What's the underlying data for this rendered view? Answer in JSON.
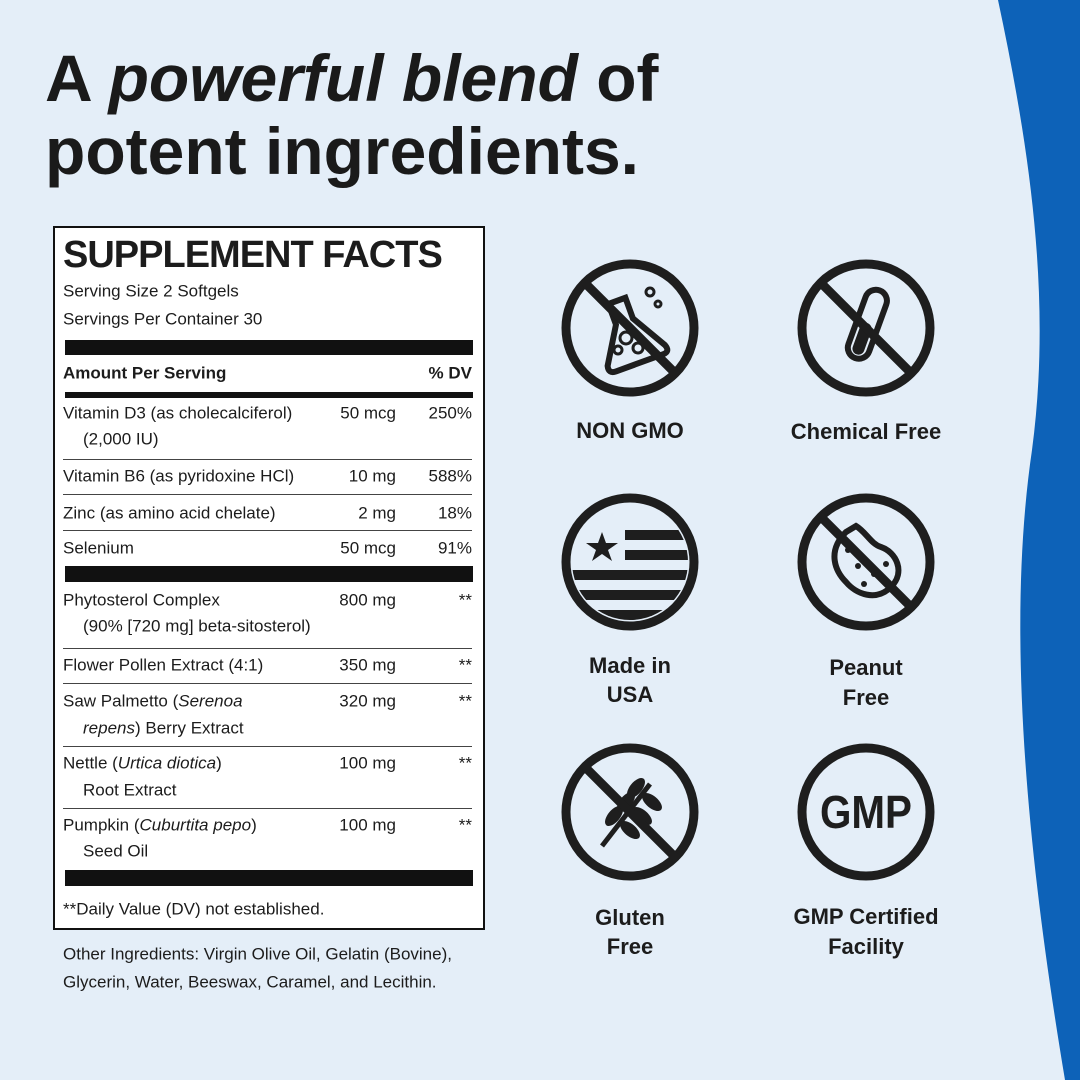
{
  "headline": [
    "A",
    "powerful blend",
    "of",
    "potent ingredients."
  ],
  "facts": {
    "title": "SUPPLEMENT FACTS",
    "serving_size": "Serving Size 2 Softgels",
    "servings_per_container": "Servings Per Container 30",
    "header": [
      "Amount Per Serving",
      "% DV"
    ],
    "rows": [
      {
        "lines": [
          [
            "Vitamin D3 (as cholecalciferol)"
          ],
          [
            "(2,000 IU)"
          ]
        ],
        "amount": "50 mcg",
        "dv": "250%"
      },
      {
        "lines": [
          [
            "Vitamin B6 (as pyridoxine HCl)"
          ]
        ],
        "amount": "10 mg",
        "dv": "588%"
      },
      {
        "lines": [
          [
            "Zinc (as amino acid chelate)"
          ]
        ],
        "amount": "2 mg",
        "dv": "18%"
      },
      {
        "lines": [
          [
            "Selenium"
          ]
        ],
        "amount": "50 mcg",
        "dv": "91%"
      },
      {
        "lines": [
          [
            "Phytosterol Complex"
          ],
          [
            "(90% [720 mg] beta-sitosterol)"
          ]
        ],
        "amount": "800 mg",
        "dv": "**"
      },
      {
        "lines": [
          [
            "Flower Pollen Extract (4:1)"
          ]
        ],
        "amount": "350 mg",
        "dv": "**"
      },
      {
        "lines": [
          [
            "Saw Palmetto (",
            {
              "text": "Serenoa",
              "italic": true
            }
          ],
          [
            {
              "text": "repens",
              "italic": true
            },
            ") Berry Extract"
          ]
        ],
        "amount": "320 mg",
        "dv": "**"
      },
      {
        "lines": [
          [
            "Nettle (",
            {
              "text": "Urtica diotica",
              "italic": true
            },
            ")"
          ],
          [
            "Root Extract"
          ]
        ],
        "amount": "100 mg",
        "dv": "**"
      },
      {
        "lines": [
          [
            "Pumpkin (",
            {
              "text": "Cuburtita pepo",
              "italic": true
            },
            ")"
          ],
          [
            "Seed Oil"
          ]
        ],
        "amount": "100 mg",
        "dv": "**"
      }
    ],
    "footnote": "**Daily Value (DV) not established."
  },
  "other_ingredients": [
    "Other Ingredients: Virgin Olive Oil, Gelatin (Bovine),",
    "Glycerin, Water, Beeswax, Caramel, and Lecithin."
  ],
  "badges": [
    {
      "label": [
        "NON GMO"
      ]
    },
    {
      "label": [
        "Chemical Free"
      ]
    },
    {
      "label": [
        "Made in",
        "USA"
      ]
    },
    {
      "label": [
        "Peanut",
        "Free"
      ]
    },
    {
      "label": [
        "Gluten",
        "Free"
      ]
    },
    {
      "icon_text": "GMP",
      "label": [
        "GMP Certified",
        "Facility"
      ]
    }
  ]
}
